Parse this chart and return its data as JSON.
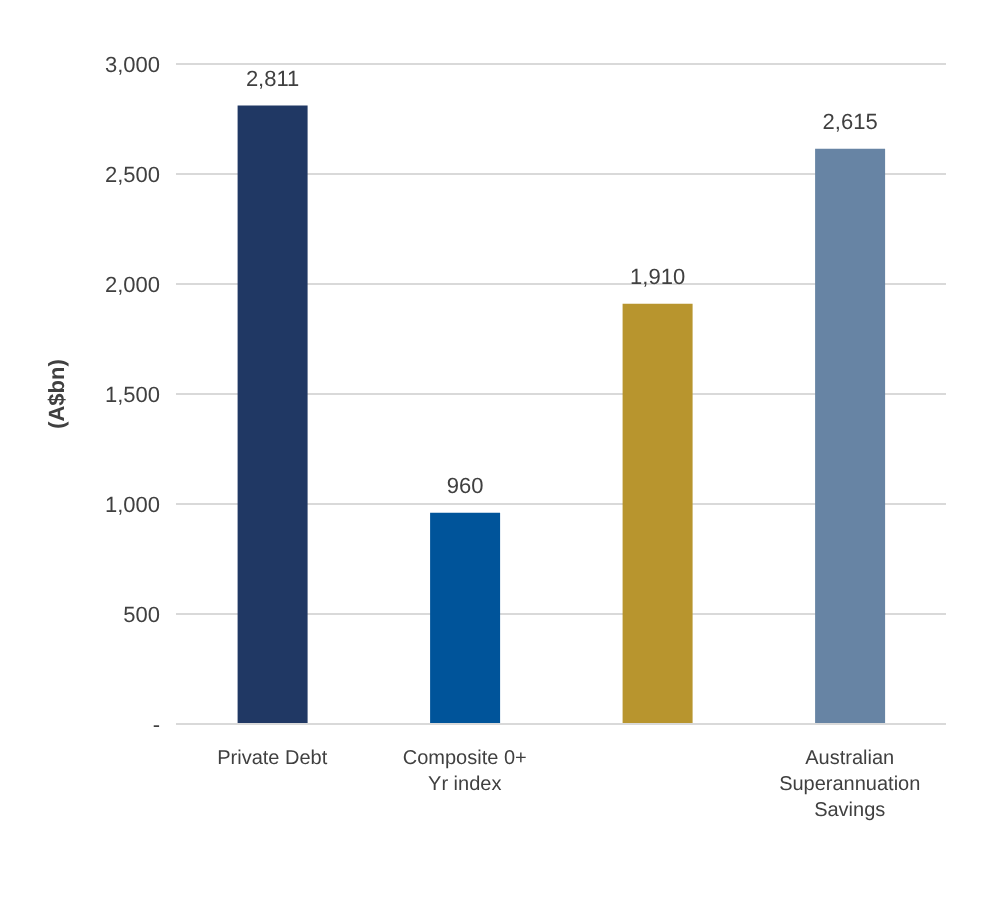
{
  "chart_data": {
    "type": "bar",
    "ylabel": "(A$bn)",
    "categories": [
      "Private Debt",
      "Composite 0+ Yr index",
      null,
      "Australian Superannuation Savings"
    ],
    "values": [
      2811,
      960,
      1910,
      2615
    ],
    "value_labels": [
      "2,811",
      "960",
      "1,910",
      "2,615"
    ],
    "colors": [
      "#203864",
      "#00549a",
      "#b8952e",
      "#6784a4"
    ],
    "ylim": [
      0,
      3000
    ],
    "yticks": [
      {
        "value": 0,
        "label": "-"
      },
      500,
      {
        "value": 1000,
        "label": "1,000"
      },
      {
        "value": 1500,
        "label": "1,500"
      },
      {
        "value": 2000,
        "label": "2,000"
      },
      {
        "value": 2500,
        "label": "2,500"
      },
      {
        "value": 3000,
        "label": "3,000"
      }
    ],
    "grid": "y"
  }
}
